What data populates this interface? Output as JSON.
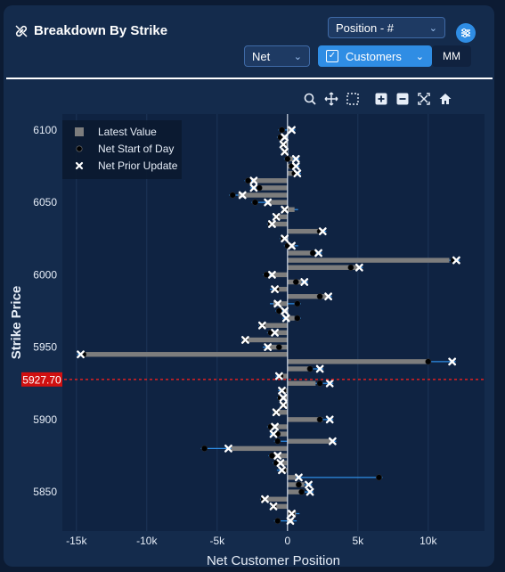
{
  "header": {
    "title": "Breakdown By Strike",
    "position_select": "Position - #",
    "net_select": "Net",
    "customers_select": "Customers",
    "mm_button": "MM"
  },
  "colors": {
    "bar": "#7d7d7d",
    "error_line": "#2f8de4",
    "spot_line": "#e02020",
    "spot_label_bg": "#d01010",
    "plot_bg": "#0f2342"
  },
  "toolbar": [
    "zoom-icon",
    "pan-icon",
    "box-select-icon",
    "zoom-in-icon",
    "zoom-out-icon",
    "autoscale-icon",
    "home-icon"
  ],
  "chart_data": {
    "type": "bar",
    "orientation": "horizontal",
    "xlabel": "Net Customer Position",
    "ylabel": "Strike Price",
    "xlim": [
      -16000,
      14000
    ],
    "ylim": [
      5823,
      6111
    ],
    "x_ticks": [
      -15000,
      -10000,
      -5000,
      0,
      5000,
      10000
    ],
    "x_tick_labels": [
      "-15k",
      "-10k",
      "-5k",
      "0",
      "5k",
      "10k"
    ],
    "y_ticks": [
      5850,
      5900,
      5950,
      6000,
      6050,
      6100
    ],
    "spot_price": 5927.7,
    "spot_label": "5927.70",
    "legend": {
      "placement": "top-left",
      "entries": [
        "Latest Value",
        "Net Start of Day",
        "Net Prior Update"
      ]
    },
    "series": [
      {
        "name": "Latest Value",
        "kind": "bar"
      },
      {
        "name": "Net Start of Day",
        "kind": "dot"
      },
      {
        "name": "Net Prior Update",
        "kind": "x"
      }
    ],
    "strikes": [
      6100,
      6095,
      6090,
      6085,
      6080,
      6075,
      6070,
      6065,
      6060,
      6055,
      6050,
      6045,
      6040,
      6035,
      6030,
      6025,
      6020,
      6015,
      6010,
      6005,
      6000,
      5995,
      5990,
      5985,
      5980,
      5975,
      5970,
      5965,
      5960,
      5955,
      5950,
      5945,
      5940,
      5935,
      5930,
      5925,
      5920,
      5915,
      5910,
      5905,
      5900,
      5895,
      5890,
      5885,
      5880,
      5875,
      5870,
      5865,
      5860,
      5855,
      5850,
      5845,
      5840,
      5835,
      5830
    ],
    "latest": [
      300,
      -400,
      -300,
      -200,
      400,
      300,
      500,
      -2500,
      -2000,
      -3500,
      -1500,
      500,
      -800,
      -1200,
      2500,
      -300,
      500,
      2000,
      11500,
      5000,
      -1200,
      1000,
      -1000,
      2800,
      -1000,
      -200,
      500,
      -1800,
      -800,
      -3000,
      -1500,
      -14500,
      10000,
      1500,
      -500,
      2000,
      -300,
      -500,
      -200,
      -800,
      2500,
      -1000,
      -700,
      3200,
      -4000,
      -1000,
      -800,
      -500,
      600,
      1200,
      1000,
      -1500,
      -1000,
      600,
      400
    ],
    "start_of_day": [
      -400,
      -500,
      -300,
      -200,
      0,
      300,
      500,
      -2800,
      -2000,
      -3900,
      -2300,
      -200,
      -800,
      -1200,
      2300,
      -300,
      0,
      1800,
      11800,
      4500,
      -1500,
      600,
      -800,
      2300,
      700,
      -600,
      700,
      -1800,
      -1200,
      -3000,
      -600,
      -14500,
      10000,
      1600,
      -500,
      2300,
      -300,
      -500,
      -300,
      -800,
      2300,
      -1200,
      -700,
      -700,
      -5900,
      -1100,
      -800,
      -300,
      6500,
      800,
      1000,
      -1700,
      -1000,
      300,
      -700
    ],
    "prior_update": [
      300,
      -200,
      -300,
      -200,
      600,
      600,
      700,
      -2400,
      -2400,
      -3200,
      -1400,
      -200,
      -800,
      -1100,
      2500,
      -200,
      300,
      2200,
      12000,
      5100,
      -1100,
      1200,
      -900,
      2900,
      -700,
      -200,
      -100,
      -1800,
      -900,
      -3000,
      -1400,
      -14700,
      11700,
      2300,
      -600,
      3000,
      -400,
      -300,
      -300,
      -800,
      3000,
      -900,
      -1000,
      3200,
      -4200,
      -700,
      -500,
      -400,
      800,
      1500,
      1600,
      -1600,
      -1000,
      300,
      200
    ]
  }
}
